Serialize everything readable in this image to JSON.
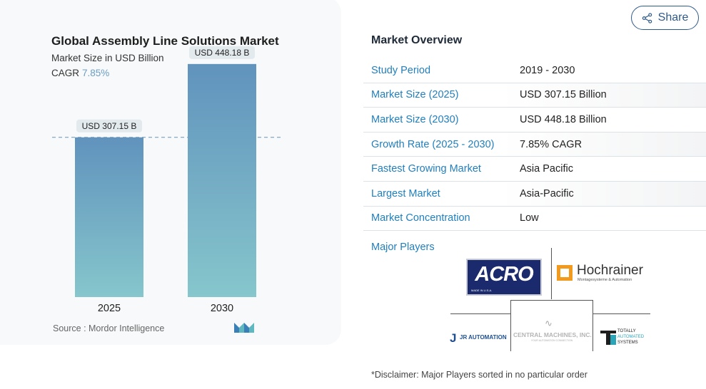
{
  "share": {
    "label": "Share",
    "icon": "share-icon"
  },
  "chart_data": {
    "type": "bar",
    "title": "Global Assembly Line Solutions Market",
    "subtitle": "Market Size in USD Billion",
    "cagr_label": "CAGR",
    "cagr_value": "7.85%",
    "categories": [
      "2025",
      "2030"
    ],
    "values": [
      307.15,
      448.18
    ],
    "data_labels": [
      "USD 307.15 B",
      "USD 448.18 B"
    ],
    "ylim": [
      0,
      500
    ],
    "reference_line": 307.15,
    "bar_gradient": [
      "#6193bd",
      "#86c6cc"
    ],
    "source": "Source :  Mordor Intelligence"
  },
  "overview": {
    "title": "Market Overview",
    "rows": [
      {
        "key": "Study Period",
        "value": "2019 - 2030"
      },
      {
        "key": "Market Size (2025)",
        "value": "USD 307.15 Billion"
      },
      {
        "key": "Market Size (2030)",
        "value": "USD 448.18 Billion"
      },
      {
        "key": "Growth Rate (2025 - 2030)",
        "value": "7.85% CAGR"
      },
      {
        "key": "Fastest Growing Market",
        "value": "Asia Pacific"
      },
      {
        "key": "Largest Market",
        "value": "Asia-Pacific"
      },
      {
        "key": "Market Concentration",
        "value": "Low"
      }
    ]
  },
  "major_players": {
    "title": "Major Players",
    "logos": [
      "ACRO",
      "Hochrainer",
      "JR AUTOMATION",
      "CENTRAL MACHINES, INC.",
      "TOTALLY AUTOMATED SYSTEMS"
    ],
    "hochrainer_tagline": "Montagesysteme & Automation",
    "acro_tagline": "MADE IN U.S.A.",
    "central_tagline": "YOUR AUTOMATION CONNECTION",
    "tas_lines": [
      "TOTALLY",
      "AUTOMATED",
      "SYSTEMS"
    ]
  },
  "disclaimer": "*Disclaimer: Major Players sorted in no particular order",
  "colors": {
    "accent": "#1f7fbf",
    "share_border": "#2e5a8a",
    "cagr": "#6b9dc4"
  }
}
